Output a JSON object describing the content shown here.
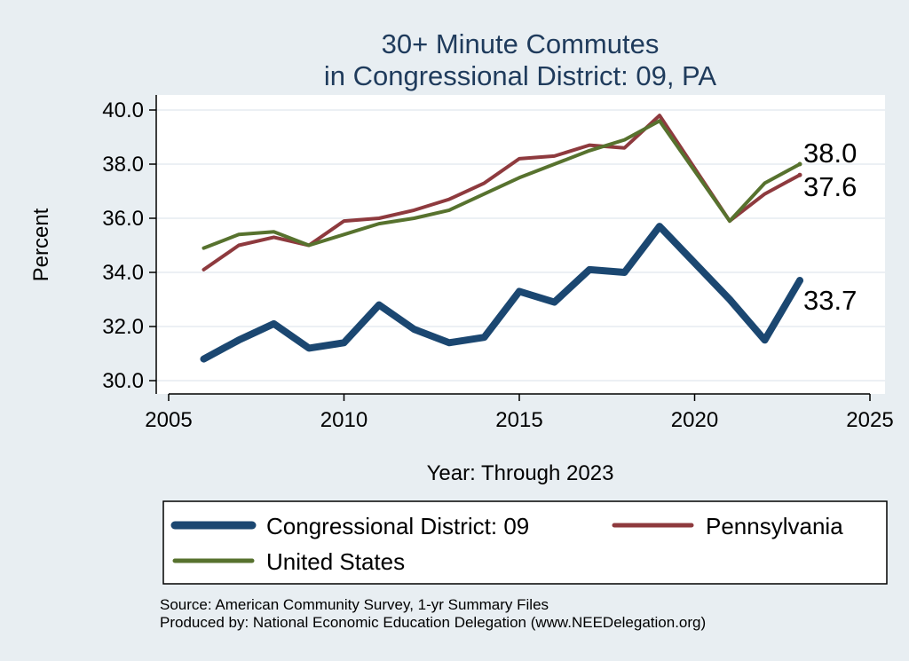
{
  "chart_data": {
    "type": "line",
    "title": [
      "30+ Minute Commutes",
      "in Congressional District:  09, PA"
    ],
    "xlabel": "Year: Through 2023",
    "ylabel": "Percent",
    "xlim": [
      2005,
      2025
    ],
    "ylim": [
      30,
      40
    ],
    "xticks": [
      "2005",
      "2010",
      "2015",
      "2020",
      "2025"
    ],
    "yticks": [
      "30.0",
      "32.0",
      "34.0",
      "36.0",
      "38.0",
      "40.0"
    ],
    "grid": true,
    "legend_position": "bottom",
    "series": [
      {
        "name": "Congressional District:  09",
        "color": "#1b4771",
        "x": [
          2006,
          2007,
          2008,
          2009,
          2010,
          2011,
          2012,
          2013,
          2014,
          2015,
          2016,
          2017,
          2018,
          2019,
          2021,
          2022,
          2023
        ],
        "values": [
          30.8,
          31.5,
          32.1,
          31.2,
          31.4,
          32.8,
          31.9,
          31.4,
          31.6,
          33.3,
          32.9,
          34.1,
          34.0,
          35.7,
          33.0,
          31.5,
          33.7
        ],
        "end_label": "33.7"
      },
      {
        "name": "Pennsylvania",
        "color": "#8e3a3e",
        "x": [
          2006,
          2007,
          2008,
          2009,
          2010,
          2011,
          2012,
          2013,
          2014,
          2015,
          2016,
          2017,
          2018,
          2019,
          2021,
          2022,
          2023
        ],
        "values": [
          34.1,
          35.0,
          35.3,
          35.0,
          35.9,
          36.0,
          36.3,
          36.7,
          37.3,
          38.2,
          38.3,
          38.7,
          38.6,
          39.8,
          35.9,
          36.9,
          37.6
        ],
        "end_label": "37.6"
      },
      {
        "name": "United States",
        "color": "#57722e",
        "x": [
          2006,
          2007,
          2008,
          2009,
          2010,
          2011,
          2012,
          2013,
          2014,
          2015,
          2016,
          2017,
          2018,
          2019,
          2021,
          2022,
          2023
        ],
        "values": [
          34.9,
          35.4,
          35.5,
          35.0,
          35.4,
          35.8,
          36.0,
          36.3,
          36.9,
          37.5,
          38.0,
          38.5,
          38.9,
          39.6,
          35.9,
          37.3,
          38.0
        ],
        "end_label": "38.0"
      }
    ],
    "source_lines": [
      "Source: American Community Survey, 1-yr Summary Files",
      "Produced by: National Economic Education Delegation (www.NEEDelegation.org)"
    ]
  }
}
